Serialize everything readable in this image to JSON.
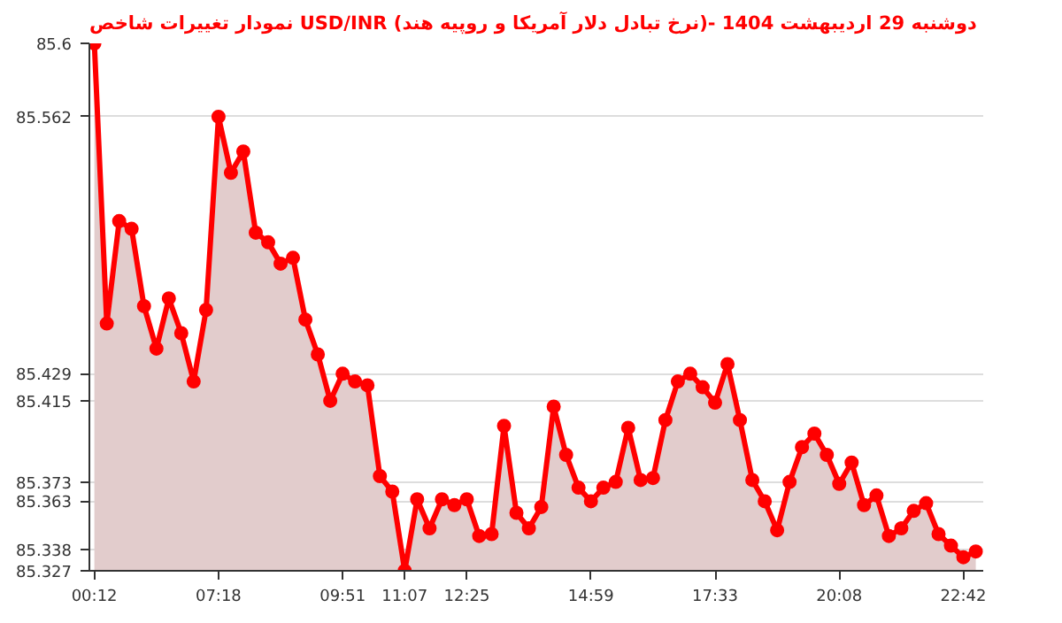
{
  "chart_data": {
    "type": "area",
    "title": "نمودار تغییرات شاخص USD/INR (نرخ تبادل دلار آمریکا و روپیه هند)- دوشنبه  29 اردیبهشت 1404",
    "categories": [
      "00:12",
      null,
      null,
      null,
      null,
      null,
      null,
      null,
      null,
      null,
      "07:18",
      null,
      null,
      null,
      null,
      null,
      null,
      null,
      null,
      null,
      "09:51",
      null,
      null,
      null,
      null,
      "11:07",
      null,
      null,
      null,
      null,
      "12:25",
      null,
      null,
      null,
      null,
      null,
      null,
      null,
      null,
      null,
      "14:59",
      null,
      null,
      null,
      null,
      null,
      null,
      null,
      null,
      null,
      "17:33",
      null,
      null,
      null,
      null,
      null,
      null,
      null,
      null,
      null,
      "20:08",
      null,
      null,
      null,
      null,
      null,
      null,
      null,
      null,
      null,
      "22:42",
      null
    ],
    "series": [
      {
        "color": "#ff0000",
        "values": [
          85.6,
          85.455,
          85.508,
          85.504,
          85.464,
          85.442,
          85.468,
          85.45,
          85.425,
          85.462,
          85.562,
          85.533,
          85.544,
          85.502,
          85.497,
          85.486,
          85.489,
          85.457,
          85.439,
          85.415,
          85.429,
          85.425,
          85.423,
          85.376,
          85.368,
          85.327,
          85.364,
          85.349,
          85.364,
          85.361,
          85.364,
          85.345,
          85.346,
          85.402,
          85.357,
          85.349,
          85.36,
          85.412,
          85.387,
          85.37,
          85.363,
          85.37,
          85.373,
          85.401,
          85.374,
          85.375,
          85.405,
          85.425,
          85.429,
          85.422,
          85.414,
          85.434,
          85.405,
          85.374,
          85.363,
          85.348,
          85.373,
          85.391,
          85.398,
          85.387,
          85.372,
          85.383,
          85.361,
          85.366,
          85.345,
          85.349,
          85.358,
          85.362,
          85.346,
          85.34,
          85.334,
          85.337
        ]
      }
    ],
    "ylim": [
      85.327,
      85.6
    ],
    "yticks": [
      85.6,
      85.562,
      85.429,
      85.415,
      85.373,
      85.363,
      85.338,
      85.327
    ],
    "grid": "y",
    "marker": "circle",
    "line_style": "solid"
  }
}
